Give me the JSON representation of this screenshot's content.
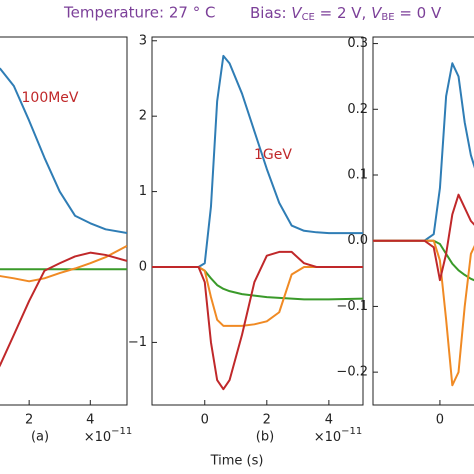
{
  "header": {
    "temperature": "Temperature: 27 ° C",
    "bias_parts": [
      "Bias: ",
      "V",
      "CE",
      " = 2 V, ",
      "V",
      "BE",
      " = 0 V"
    ]
  },
  "xlabel": "Time (s)",
  "chart_data": [
    {
      "type": "line",
      "annotation": "100MeV",
      "panel_label": "(a)",
      "x_offset_base": "×10",
      "x_offset_exp": "−11",
      "x": [
        -1.7,
        0,
        0.4,
        0.8,
        1.05,
        1.5,
        2,
        2.5,
        3,
        3.5,
        4,
        4.5,
        5.2
      ],
      "xlim": [
        -1.7,
        5.2
      ],
      "xticks": [
        2,
        4
      ],
      "ylim": [
        -1.83,
        3.05
      ],
      "series": [
        {
          "color": "#2f7db5",
          "values": [
            0,
            0,
            1.5,
            2.5,
            2.63,
            2.4,
            1.94,
            1.45,
            1.0,
            0.68,
            0.58,
            0.5,
            0.45
          ]
        },
        {
          "color": "#3a9a2a",
          "values": [
            0,
            0,
            -0.02,
            -0.03,
            -0.03,
            -0.03,
            -0.03,
            -0.03,
            -0.03,
            -0.03,
            -0.03,
            -0.03,
            -0.03
          ]
        },
        {
          "color": "#f08a24",
          "values": [
            0,
            0,
            -0.08,
            -0.12,
            -0.12,
            -0.15,
            -0.19,
            -0.15,
            -0.08,
            -0.02,
            0.05,
            0.13,
            0.28
          ]
        },
        {
          "color": "#c0282a",
          "values": [
            0,
            0,
            -1.0,
            -1.5,
            -1.3,
            -0.9,
            -0.45,
            -0.05,
            0.05,
            0.14,
            0.19,
            0.16,
            0.08
          ]
        }
      ]
    },
    {
      "type": "line",
      "annotation": "1GeV",
      "panel_label": "(b)",
      "x_offset_base": "×10",
      "x_offset_exp": "−11",
      "x": [
        -1.7,
        -0.2,
        0,
        0.2,
        0.4,
        0.6,
        0.8,
        1.2,
        1.6,
        2.0,
        2.4,
        2.8,
        3.2,
        3.6,
        4.0,
        5.1
      ],
      "xlim": [
        -1.7,
        5.1
      ],
      "xticks": [
        0,
        2,
        4
      ],
      "ylim": [
        -1.83,
        3.05
      ],
      "yticks": [
        {
          "value": -1,
          "label": "−1"
        },
        0,
        1,
        2,
        3
      ],
      "series": [
        {
          "color": "#2f7db5",
          "values": [
            0,
            0,
            0.05,
            0.8,
            2.2,
            2.8,
            2.7,
            2.3,
            1.8,
            1.3,
            0.85,
            0.55,
            0.48,
            0.46,
            0.45,
            0.45
          ]
        },
        {
          "color": "#3a9a2a",
          "values": [
            0,
            0,
            -0.05,
            -0.15,
            -0.24,
            -0.29,
            -0.32,
            -0.36,
            -0.38,
            -0.4,
            -0.41,
            -0.42,
            -0.43,
            -0.43,
            -0.43,
            -0.42
          ]
        },
        {
          "color": "#f08a24",
          "values": [
            0,
            0,
            -0.05,
            -0.4,
            -0.7,
            -0.78,
            -0.78,
            -0.78,
            -0.76,
            -0.72,
            -0.6,
            -0.1,
            0,
            0,
            0,
            0
          ]
        },
        {
          "color": "#c0282a",
          "values": [
            0,
            0,
            -0.2,
            -1.0,
            -1.5,
            -1.62,
            -1.5,
            -0.9,
            -0.2,
            0.15,
            0.2,
            0.2,
            0.05,
            0,
            0,
            0
          ]
        }
      ]
    },
    {
      "type": "line",
      "x": [
        -2.16,
        -0.5,
        -0.2,
        0,
        0.2,
        0.4,
        0.6,
        0.8,
        1.0,
        1.2,
        2,
        4.65
      ],
      "xlim": [
        -2.16,
        4.65
      ],
      "xticks": [
        0
      ],
      "ylim": [
        -0.25,
        0.31
      ],
      "yticks": [
        {
          "value": -0.2,
          "label": "−0.2"
        },
        {
          "value": -0.1,
          "label": "−0.1"
        },
        {
          "value": 0,
          "label": "0.0"
        },
        0.1,
        0.2,
        0.3
      ],
      "series": [
        {
          "color": "#2f7db5",
          "values": [
            0,
            0,
            0.01,
            0.08,
            0.22,
            0.27,
            0.25,
            0.18,
            0.13,
            0.1,
            0.05,
            0.03
          ]
        },
        {
          "color": "#3a9a2a",
          "values": [
            0,
            0,
            0,
            -0.005,
            -0.02,
            -0.035,
            -0.045,
            -0.052,
            -0.058,
            -0.062,
            -0.07,
            -0.07
          ]
        },
        {
          "color": "#f08a24",
          "values": [
            0,
            0,
            0,
            -0.03,
            -0.12,
            -0.22,
            -0.2,
            -0.1,
            -0.02,
            0.0,
            0.0,
            0.0
          ]
        },
        {
          "color": "#c0282a",
          "values": [
            0,
            0,
            -0.01,
            -0.06,
            -0.02,
            0.04,
            0.07,
            0.05,
            0.03,
            0.02,
            0.01,
            0.0
          ]
        }
      ]
    }
  ]
}
